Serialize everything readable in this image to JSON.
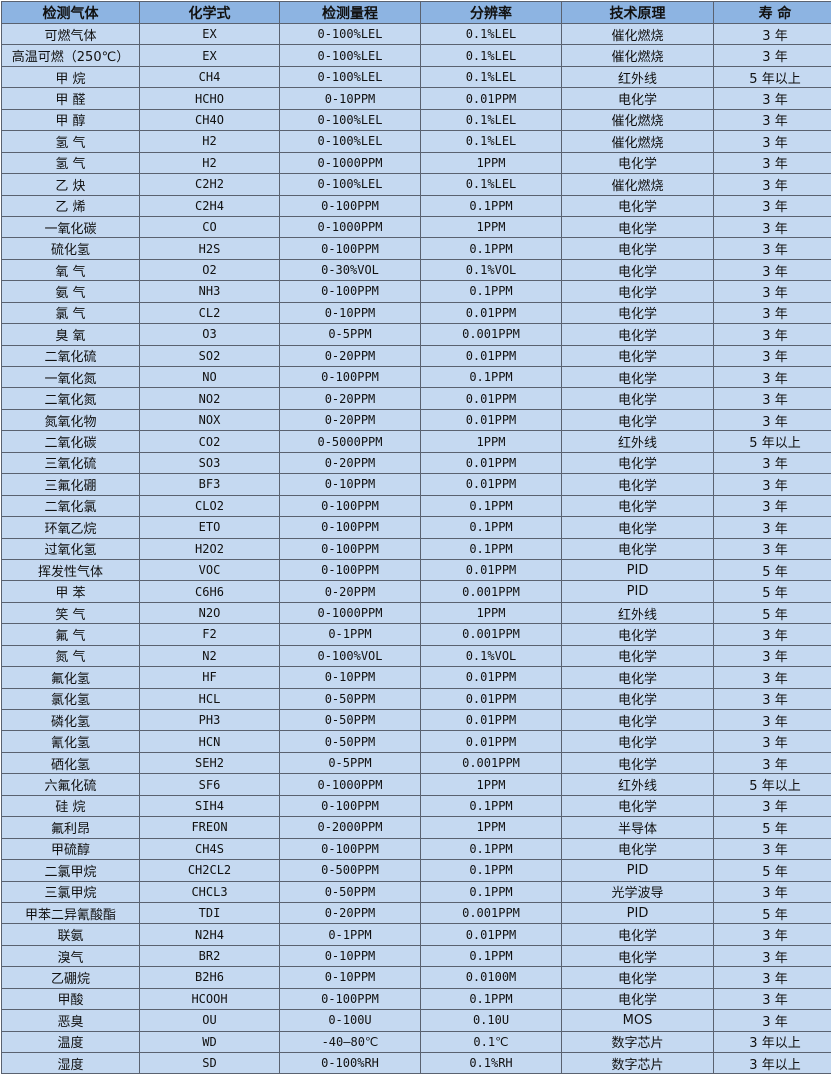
{
  "headers": [
    "检测气体",
    "化学式",
    "检测量程",
    "分辨率",
    "技术原理",
    "寿 命"
  ],
  "colors": {
    "header_bg": "#8db4e2",
    "row_bg": "#c5d9f1",
    "border": "#5a6270"
  },
  "rows": [
    [
      "可燃气体",
      "EX",
      "0-100%LEL",
      "0.1%LEL",
      "催化燃烧",
      "3 年"
    ],
    [
      "高温可燃（250℃）",
      "EX",
      "0-100%LEL",
      "0.1%LEL",
      "催化燃烧",
      "3 年"
    ],
    [
      "甲 烷",
      "CH4",
      "0-100%LEL",
      "0.1%LEL",
      "红外线",
      "5 年以上"
    ],
    [
      "甲 醛",
      "HCHO",
      "0-10PPM",
      "0.01PPM",
      "电化学",
      "3 年"
    ],
    [
      "甲 醇",
      "CH4O",
      "0-100%LEL",
      "0.1%LEL",
      "催化燃烧",
      "3 年"
    ],
    [
      "氢 气",
      "H2",
      "0-100%LEL",
      "0.1%LEL",
      "催化燃烧",
      "3 年"
    ],
    [
      "氢 气",
      "H2",
      "0-1000PPM",
      "1PPM",
      "电化学",
      "3 年"
    ],
    [
      "乙 炔",
      "C2H2",
      "0-100%LEL",
      "0.1%LEL",
      "催化燃烧",
      "3 年"
    ],
    [
      "乙 烯",
      "C2H4",
      "0-100PPM",
      "0.1PPM",
      "电化学",
      "3 年"
    ],
    [
      "一氧化碳",
      "CO",
      "0-1000PPM",
      "1PPM",
      "电化学",
      "3 年"
    ],
    [
      "硫化氢",
      "H2S",
      "0-100PPM",
      "0.1PPM",
      "电化学",
      "3 年"
    ],
    [
      "氧 气",
      "O2",
      "0-30%VOL",
      "0.1%VOL",
      "电化学",
      "3 年"
    ],
    [
      "氨 气",
      "NH3",
      "0-100PPM",
      "0.1PPM",
      "电化学",
      "3 年"
    ],
    [
      "氯 气",
      "CL2",
      "0-10PPM",
      "0.01PPM",
      "电化学",
      "3 年"
    ],
    [
      "臭 氧",
      "O3",
      "0-5PPM",
      "0.001PPM",
      "电化学",
      "3 年"
    ],
    [
      "二氧化硫",
      "SO2",
      "0-20PPM",
      "0.01PPM",
      "电化学",
      "3 年"
    ],
    [
      "一氧化氮",
      "NO",
      "0-100PPM",
      "0.1PPM",
      "电化学",
      "3 年"
    ],
    [
      "二氧化氮",
      "NO2",
      "0-20PPM",
      "0.01PPM",
      "电化学",
      "3 年"
    ],
    [
      "氮氧化物",
      "NOX",
      "0-20PPM",
      "0.01PPM",
      "电化学",
      "3 年"
    ],
    [
      "二氧化碳",
      "CO2",
      "0-5000PPM",
      "1PPM",
      "红外线",
      "5 年以上"
    ],
    [
      "三氧化硫",
      "SO3",
      "0-20PPM",
      "0.01PPM",
      "电化学",
      "3 年"
    ],
    [
      "三氟化硼",
      "BF3",
      "0-10PPM",
      "0.01PPM",
      "电化学",
      "3 年"
    ],
    [
      "二氧化氯",
      "CLO2",
      "0-100PPM",
      "0.1PPM",
      "电化学",
      "3 年"
    ],
    [
      "环氧乙烷",
      "ETO",
      "0-100PPM",
      "0.1PPM",
      "电化学",
      "3 年"
    ],
    [
      "过氧化氢",
      "H2O2",
      "0-100PPM",
      "0.1PPM",
      "电化学",
      "3 年"
    ],
    [
      "挥发性气体",
      "VOC",
      "0-100PPM",
      "0.01PPM",
      "PID",
      "5 年"
    ],
    [
      "甲 苯",
      "C6H6",
      "0-20PPM",
      "0.001PPM",
      "PID",
      "5 年"
    ],
    [
      "笑 气",
      "N2O",
      "0-1000PPM",
      "1PPM",
      "红外线",
      "5 年"
    ],
    [
      "氟 气",
      "F2",
      "0-1PPM",
      "0.001PPM",
      "电化学",
      "3 年"
    ],
    [
      "氮 气",
      "N2",
      "0-100%VOL",
      "0.1%VOL",
      "电化学",
      "3 年"
    ],
    [
      "氟化氢",
      "HF",
      "0-10PPM",
      "0.01PPM",
      "电化学",
      "3 年"
    ],
    [
      "氯化氢",
      "HCL",
      "0-50PPM",
      "0.01PPM",
      "电化学",
      "3 年"
    ],
    [
      "磷化氢",
      "PH3",
      "0-50PPM",
      "0.01PPM",
      "电化学",
      "3 年"
    ],
    [
      "氰化氢",
      "HCN",
      "0-50PPM",
      "0.01PPM",
      "电化学",
      "3 年"
    ],
    [
      "硒化氢",
      "SEH2",
      "0-5PPM",
      "0.001PPM",
      "电化学",
      "3 年"
    ],
    [
      "六氟化硫",
      "SF6",
      "0-1000PPM",
      "1PPM",
      "红外线",
      "5 年以上"
    ],
    [
      "硅 烷",
      "SIH4",
      "0-100PPM",
      "0.1PPM",
      "电化学",
      "3 年"
    ],
    [
      "氟利昂",
      "FREON",
      "0-2000PPM",
      "1PPM",
      "半导体",
      "5 年"
    ],
    [
      "甲硫醇",
      "CH4S",
      "0-100PPM",
      "0.1PPM",
      "电化学",
      "3 年"
    ],
    [
      "二氯甲烷",
      "CH2CL2",
      "0-500PPM",
      "0.1PPM",
      "PID",
      "5 年"
    ],
    [
      "三氯甲烷",
      "CHCL3",
      "0-50PPM",
      "0.1PPM",
      "光学波导",
      "3 年"
    ],
    [
      "甲苯二异氰酸酯",
      "TDI",
      "0-20PPM",
      "0.001PPM",
      "PID",
      "5 年"
    ],
    [
      "联氨",
      "N2H4",
      "0-1PPM",
      "0.01PPM",
      "电化学",
      "3 年"
    ],
    [
      "溴气",
      "BR2",
      "0-10PPM",
      "0.1PPM",
      "电化学",
      "3 年"
    ],
    [
      "乙硼烷",
      "B2H6",
      "0-10PPM",
      "0.0100M",
      "电化学",
      "3 年"
    ],
    [
      "甲酸",
      "HCOOH",
      "0-100PPM",
      "0.1PPM",
      "电化学",
      "3 年"
    ],
    [
      "恶臭",
      "OU",
      "0-100U",
      "0.10U",
      "MOS",
      "3 年"
    ],
    [
      "温度",
      "WD",
      "-40—80℃",
      "0.1℃",
      "数字芯片",
      "3 年以上"
    ],
    [
      "湿度",
      "SD",
      "0-100%RH",
      "0.1%RH",
      "数字芯片",
      "3 年以上"
    ]
  ]
}
